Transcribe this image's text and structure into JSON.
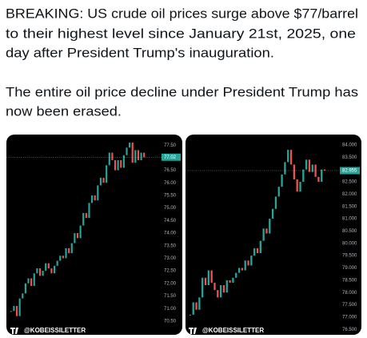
{
  "post": {
    "paragraphs": [
      {
        "lines": [
          "BREAKING: US crude oil prices surge above $77/barrel",
          "to their highest level since January 21st, 2025, one",
          "day after President Trump's inauguration."
        ]
      },
      {
        "lines": [
          "The entire oil price decline under President Trump has",
          "now been erased."
        ]
      }
    ]
  },
  "chart_data": [
    {
      "type": "candlestick",
      "watermark": "@KOBEISSILETTER",
      "up_color": "#26a69a",
      "down_color": "#ef5350",
      "values": [
        70.9,
        71.1,
        70.7,
        71.4,
        71.6,
        72.0,
        72.2,
        71.9,
        72.4,
        72.6,
        72.3,
        72.5,
        72.8,
        72.6,
        72.4,
        72.7,
        72.9,
        73.1,
        73.0,
        73.4,
        73.2,
        73.6,
        74.0,
        73.8,
        74.3,
        74.8,
        74.6,
        75.2,
        75.5,
        75.3,
        75.9,
        76.2,
        76.0,
        76.7,
        77.2,
        76.9,
        76.5,
        76.9,
        76.6,
        77.1,
        77.4,
        77.6,
        76.8,
        77.3,
        76.9,
        77.2,
        77.02
      ],
      "last_value": 77.02,
      "ylim": [
        70.05,
        77.92
      ],
      "yticks": [
        {
          "value": 77.5,
          "label": "77.50"
        },
        {
          "value": 76.5,
          "label": "76.50"
        },
        {
          "value": 76,
          "label": "76.00"
        },
        {
          "value": 75.5,
          "label": "75.50"
        },
        {
          "value": 75,
          "label": "75.00"
        },
        {
          "value": 74.5,
          "label": "74.50"
        },
        {
          "value": 74,
          "label": "74.00"
        },
        {
          "value": 73.5,
          "label": "73.50"
        },
        {
          "value": 73,
          "label": "73.00"
        },
        {
          "value": 72.5,
          "label": "72.50"
        },
        {
          "value": 72,
          "label": "72.00"
        },
        {
          "value": 71.5,
          "label": "71.50"
        },
        {
          "value": 71,
          "label": "71.00"
        },
        {
          "value": 70.5,
          "label": "70.50"
        }
      ]
    },
    {
      "type": "candlestick",
      "watermark": "@KOBEISSILETTER",
      "up_color": "#26a69a",
      "down_color": "#ef5350",
      "values": [
        77.1,
        77.6,
        77.3,
        77.8,
        78.6,
        78.3,
        78.9,
        78.4,
        78.1,
        77.8,
        78.3,
        78.0,
        78.5,
        78.4,
        78.6,
        78.8,
        79.0,
        78.9,
        79.3,
        79.1,
        79.5,
        79.8,
        79.6,
        80.1,
        80.6,
        80.4,
        81.0,
        81.4,
        81.9,
        82.3,
        82.8,
        83.3,
        83.8,
        83.2,
        82.6,
        82.1,
        82.5,
        83.0,
        83.4,
        82.9,
        83.2,
        82.7,
        82.5,
        83.0,
        82.955
      ],
      "last_value": 82.955,
      "ylim": [
        76.38,
        84.42
      ],
      "yticks": [
        {
          "value": 84,
          "label": "84.000"
        },
        {
          "value": 83.5,
          "label": "83.500"
        },
        {
          "value": 82.5,
          "label": "82.500"
        },
        {
          "value": 82,
          "label": "82.000"
        },
        {
          "value": 81.5,
          "label": "81.500"
        },
        {
          "value": 81,
          "label": "81.000"
        },
        {
          "value": 80.5,
          "label": "80.500"
        },
        {
          "value": 80,
          "label": "80.000"
        },
        {
          "value": 79.5,
          "label": "79.500"
        },
        {
          "value": 79,
          "label": "79.000"
        },
        {
          "value": 78.5,
          "label": "78.500"
        },
        {
          "value": 78,
          "label": "78.000"
        },
        {
          "value": 77.5,
          "label": "77.500"
        },
        {
          "value": 77,
          "label": "77.000"
        },
        {
          "value": 76.5,
          "label": "76.500"
        }
      ]
    }
  ]
}
